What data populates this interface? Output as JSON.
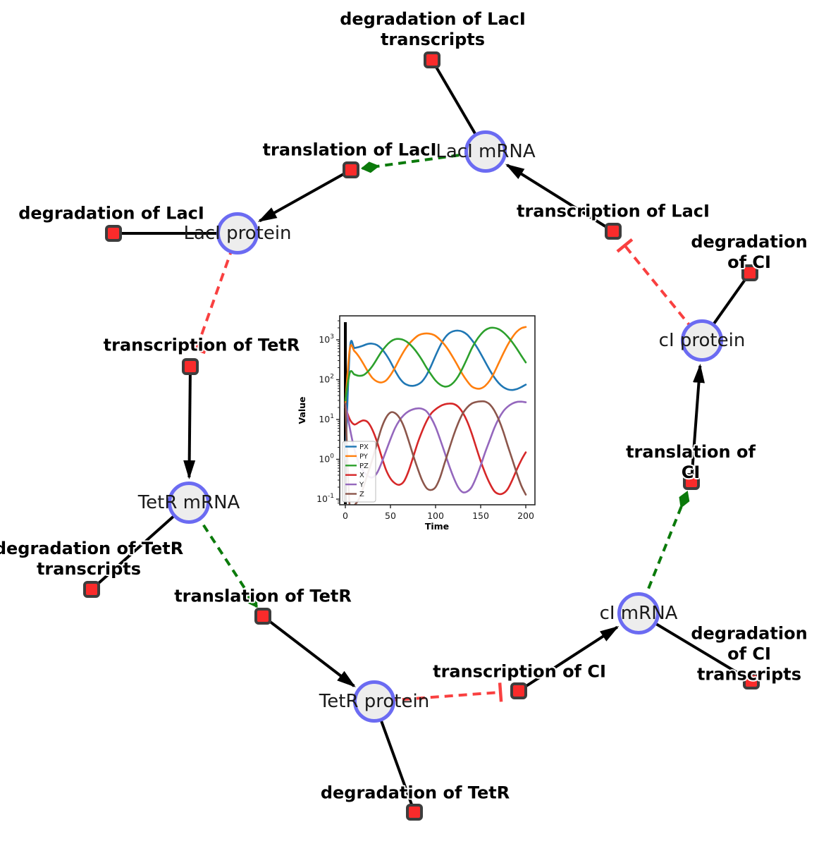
{
  "diagram": {
    "species": [
      {
        "id": "laci_mrna",
        "label": "LacI mRNA"
      },
      {
        "id": "laci_protein",
        "label": "LacI protein"
      },
      {
        "id": "tetr_mrna",
        "label": "TetR mRNA"
      },
      {
        "id": "tetr_protein",
        "label": "TetR protein"
      },
      {
        "id": "ci_mrna",
        "label": "cI mRNA"
      },
      {
        "id": "ci_protein",
        "label": "cI protein"
      }
    ],
    "reactions": [
      {
        "id": "deg_laci_tr",
        "label": "degradation of LacI\ntranscripts"
      },
      {
        "id": "transl_laci",
        "label": "translation of LacI"
      },
      {
        "id": "deg_laci",
        "label": "degradation of LacI"
      },
      {
        "id": "tr_tetr",
        "label": "transcription of TetR"
      },
      {
        "id": "deg_tetr_tr",
        "label": "degradation of TetR\ntranscripts"
      },
      {
        "id": "transl_tetr",
        "label": "translation of TetR"
      },
      {
        "id": "deg_tetr",
        "label": "degradation of TetR"
      },
      {
        "id": "tr_ci",
        "label": "transcription of CI"
      },
      {
        "id": "deg_ci_tr",
        "label": "degradation of CI\ntranscripts"
      },
      {
        "id": "transl_ci",
        "label": "translation of CI"
      },
      {
        "id": "tr_laci",
        "label": "transcription of LacI"
      },
      {
        "id": "deg_ci",
        "label": "degradation of CI"
      }
    ],
    "edges": [
      {
        "from": "laci_mrna",
        "to": "deg_laci_tr",
        "type": "consumption"
      },
      {
        "from": "tr_laci",
        "to": "laci_mrna",
        "type": "production"
      },
      {
        "from": "laci_mrna",
        "to": "transl_laci",
        "type": "modifier"
      },
      {
        "from": "transl_laci",
        "to": "laci_protein",
        "type": "production"
      },
      {
        "from": "laci_protein",
        "to": "deg_laci",
        "type": "consumption"
      },
      {
        "from": "laci_protein",
        "to": "tr_tetr",
        "type": "inhibition"
      },
      {
        "from": "tr_tetr",
        "to": "tetr_mrna",
        "type": "production"
      },
      {
        "from": "tetr_mrna",
        "to": "deg_tetr_tr",
        "type": "consumption"
      },
      {
        "from": "tetr_mrna",
        "to": "transl_tetr",
        "type": "modifier"
      },
      {
        "from": "transl_tetr",
        "to": "tetr_protein",
        "type": "production"
      },
      {
        "from": "tetr_protein",
        "to": "deg_tetr",
        "type": "consumption"
      },
      {
        "from": "tetr_protein",
        "to": "tr_ci",
        "type": "inhibition"
      },
      {
        "from": "tr_ci",
        "to": "ci_mrna",
        "type": "production"
      },
      {
        "from": "ci_mrna",
        "to": "deg_ci_tr",
        "type": "consumption"
      },
      {
        "from": "ci_mrna",
        "to": "transl_ci",
        "type": "modifier"
      },
      {
        "from": "transl_ci",
        "to": "ci_protein",
        "type": "production"
      },
      {
        "from": "ci_protein",
        "to": "deg_ci",
        "type": "consumption"
      },
      {
        "from": "ci_protein",
        "to": "tr_laci",
        "type": "inhibition"
      }
    ],
    "style": {
      "species_fill": "#ededed",
      "species_stroke": "#6b6bf2",
      "reaction_fill": "#fa2b2b",
      "reaction_stroke": "#3d3d3d",
      "edge_color": "#000000",
      "modifier_color": "#0b7a0b",
      "inhibition_color": "#f94040"
    }
  },
  "chart_data": {
    "type": "line",
    "xlabel": "Time",
    "ylabel": "Value",
    "y_scale": "log",
    "x_ticks": [
      0,
      50,
      100,
      150,
      200
    ],
    "y_tick_exponents": [
      -1,
      0,
      1,
      2,
      3
    ],
    "xlim": [
      -6,
      210
    ],
    "ylim": [
      0.065,
      4000
    ],
    "legend_position": "lower left",
    "grid": false,
    "startup_spike_at_t": 0,
    "x": [
      0,
      5,
      10,
      15,
      20,
      25,
      30,
      35,
      40,
      45,
      50,
      55,
      60,
      65,
      70,
      75,
      80,
      85,
      90,
      95,
      100,
      105,
      110,
      115,
      120,
      125,
      130,
      135,
      140,
      145,
      150,
      155,
      160,
      165,
      170,
      175,
      180,
      185,
      190,
      195,
      200
    ],
    "series": [
      {
        "name": "PX",
        "color": "#1f77b4",
        "values": [
          1,
          580,
          620,
          660,
          720,
          790,
          800,
          740,
          600,
          430,
          280,
          170,
          110,
          82,
          72,
          70,
          75,
          90,
          130,
          220,
          400,
          700,
          1100,
          1450,
          1650,
          1700,
          1600,
          1350,
          1000,
          700,
          450,
          280,
          175,
          115,
          82,
          65,
          57,
          55,
          58,
          65,
          75
        ]
      },
      {
        "name": "PY",
        "color": "#ff7f0e",
        "values": [
          25,
          600,
          520,
          380,
          250,
          160,
          110,
          90,
          85,
          95,
          130,
          200,
          330,
          520,
          760,
          1000,
          1250,
          1400,
          1450,
          1400,
          1250,
          1000,
          750,
          520,
          340,
          215,
          135,
          92,
          68,
          60,
          60,
          70,
          95,
          150,
          260,
          450,
          750,
          1150,
          1600,
          1950,
          2100
        ]
      },
      {
        "name": "PZ",
        "color": "#2ca02c",
        "values": [
          30,
          150,
          135,
          125,
          130,
          160,
          220,
          330,
          500,
          700,
          900,
          1030,
          1050,
          980,
          830,
          640,
          460,
          310,
          200,
          135,
          95,
          75,
          67,
          70,
          85,
          120,
          195,
          340,
          600,
          950,
          1350,
          1750,
          1980,
          2000,
          1850,
          1550,
          1200,
          870,
          600,
          400,
          270
        ]
      },
      {
        "name": "X",
        "color": "#d62728",
        "values": [
          20,
          10,
          7.5,
          8.5,
          9.5,
          8.5,
          5.5,
          2.8,
          1.2,
          0.55,
          0.33,
          0.25,
          0.23,
          0.28,
          0.5,
          1.1,
          2.5,
          5,
          9,
          14,
          18,
          21.5,
          24,
          25,
          24.5,
          21,
          15,
          9,
          4.5,
          2,
          0.9,
          0.45,
          0.25,
          0.16,
          0.135,
          0.14,
          0.18,
          0.3,
          0.55,
          0.95,
          1.5
        ]
      },
      {
        "name": "Y",
        "color": "#9467bd",
        "values": [
          25,
          6,
          1.8,
          0.8,
          0.5,
          0.38,
          0.35,
          0.45,
          0.8,
          1.6,
          3.2,
          6,
          9.5,
          13,
          16,
          18,
          19,
          18.5,
          16,
          11,
          6.5,
          3.2,
          1.5,
          0.7,
          0.35,
          0.2,
          0.15,
          0.155,
          0.2,
          0.35,
          0.7,
          1.5,
          3,
          6,
          10.5,
          16,
          21,
          25,
          27.5,
          28,
          27
        ]
      },
      {
        "name": "Z",
        "color": "#8c564b",
        "values": [
          25,
          0.055,
          0.07,
          0.1,
          0.2,
          0.45,
          1,
          2.5,
          6,
          11,
          15,
          14.5,
          11,
          6.5,
          3,
          1.3,
          0.6,
          0.3,
          0.19,
          0.17,
          0.2,
          0.35,
          0.8,
          1.8,
          4,
          8,
          14,
          20,
          25,
          27.5,
          28.5,
          28,
          24,
          17,
          10,
          5,
          2.2,
          1,
          0.45,
          0.22,
          0.13
        ]
      }
    ]
  }
}
